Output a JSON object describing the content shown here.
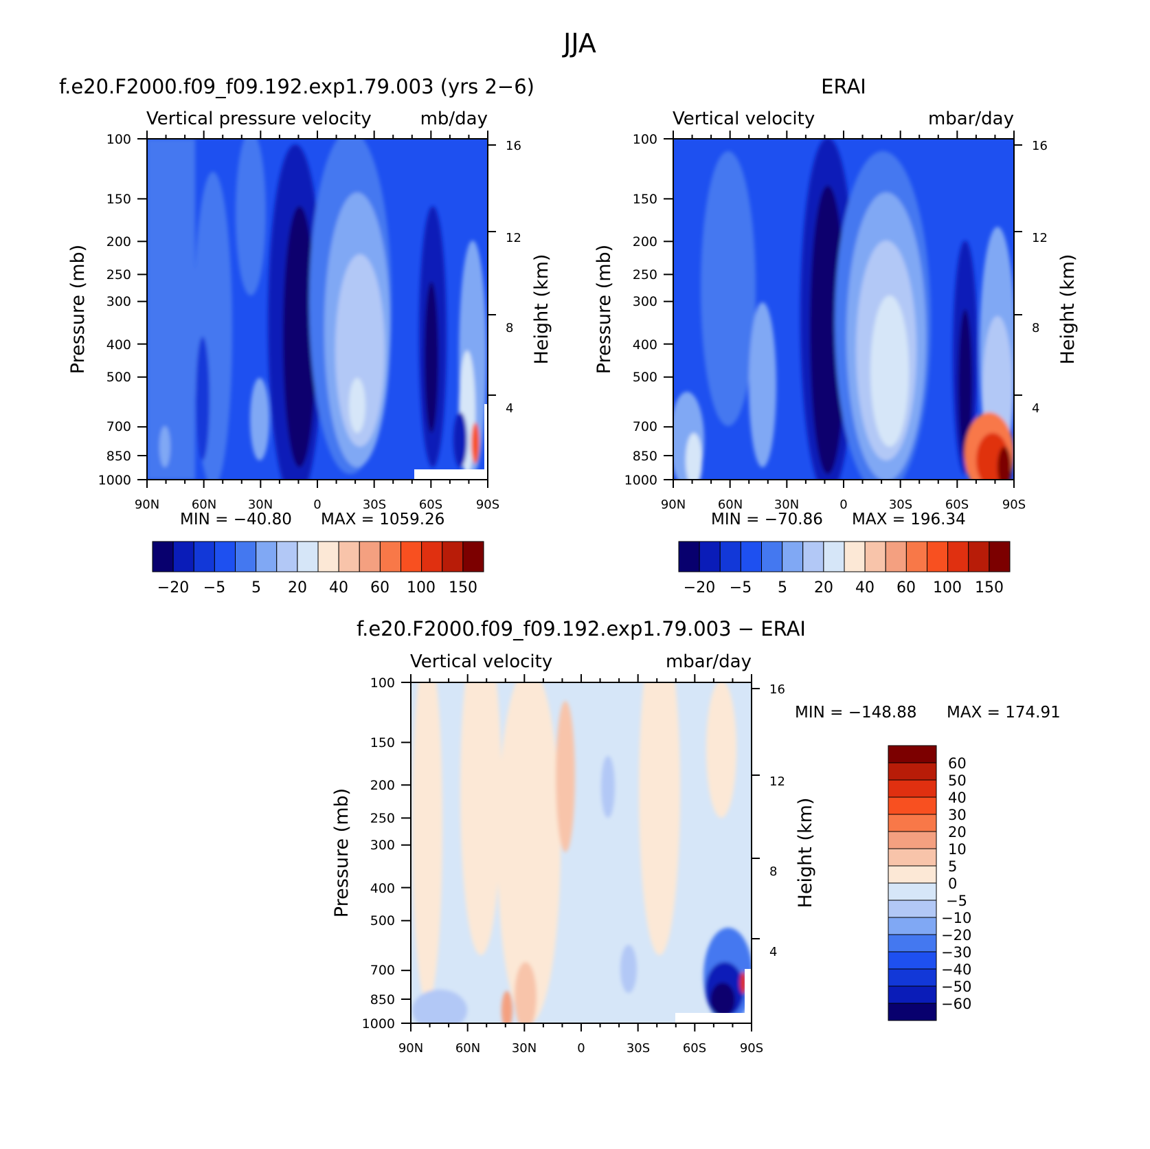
{
  "figure": {
    "title": "JJA"
  },
  "chart_data": [
    {
      "type": "heatmap",
      "panel_title": "f.e20.F2000.f09_f09.192.exp1.79.003 (yrs 2−6)",
      "field_label": "Vertical pressure velocity",
      "units": "mb/day",
      "ylabel": "Pressure (mb)",
      "ylabel_right": "Height (km)",
      "x_ticks": [
        "90N",
        "60N",
        "30N",
        "0",
        "30S",
        "60S",
        "90S"
      ],
      "x_range": [
        90,
        -90
      ],
      "y_ticks": [
        "100",
        "150",
        "200",
        "250",
        "300",
        "400",
        "500",
        "700",
        "850",
        "1000"
      ],
      "y_range": [
        100,
        1000
      ],
      "y_scale": "log",
      "height_ticks": [
        "16",
        "12",
        "8",
        "4"
      ],
      "min_label": "MIN = −40.80",
      "max_label": "MAX = 1059.26",
      "colorbar_labels": [
        "−20",
        "−5",
        "5",
        "20",
        "40",
        "60",
        "100",
        "150"
      ],
      "colorbar_orientation": "horizontal",
      "colors": [
        "#08006e",
        "#0a1cb8",
        "#1238d8",
        "#1e50f0",
        "#4478f0",
        "#80a8f4",
        "#b2c8f6",
        "#d6e6f8",
        "#fce8d6",
        "#f8c4aa",
        "#f4a080",
        "#f87848",
        "#f85020",
        "#e03010",
        "#b81c08",
        "#7c0000"
      ]
    },
    {
      "type": "heatmap",
      "panel_title": "ERAI",
      "field_label": "Vertical velocity",
      "units": "mbar/day",
      "ylabel": "Pressure (mb)",
      "ylabel_right": "Height (km)",
      "x_ticks": [
        "90N",
        "60N",
        "30N",
        "0",
        "30S",
        "60S",
        "90S"
      ],
      "x_range": [
        90,
        -90
      ],
      "y_ticks": [
        "100",
        "150",
        "200",
        "250",
        "300",
        "400",
        "500",
        "700",
        "850",
        "1000"
      ],
      "y_range": [
        100,
        1000
      ],
      "y_scale": "log",
      "height_ticks": [
        "16",
        "12",
        "8",
        "4"
      ],
      "min_label": "MIN = −70.86",
      "max_label": "MAX = 196.34",
      "colorbar_labels": [
        "−20",
        "−5",
        "5",
        "20",
        "40",
        "60",
        "100",
        "150"
      ],
      "colorbar_orientation": "horizontal",
      "colors": [
        "#08006e",
        "#0a1cb8",
        "#1238d8",
        "#1e50f0",
        "#4478f0",
        "#80a8f4",
        "#b2c8f6",
        "#d6e6f8",
        "#fce8d6",
        "#f8c4aa",
        "#f4a080",
        "#f87848",
        "#f85020",
        "#e03010",
        "#b81c08",
        "#7c0000"
      ]
    },
    {
      "type": "heatmap",
      "panel_title": "f.e20.F2000.f09_f09.192.exp1.79.003 − ERAI",
      "field_label": "Vertical velocity",
      "units": "mbar/day",
      "ylabel": "Pressure (mb)",
      "ylabel_right": "Height (km)",
      "x_ticks": [
        "90N",
        "60N",
        "30N",
        "0",
        "30S",
        "60S",
        "90S"
      ],
      "x_range": [
        90,
        -90
      ],
      "y_ticks": [
        "100",
        "150",
        "200",
        "250",
        "300",
        "400",
        "500",
        "700",
        "850",
        "1000"
      ],
      "y_range": [
        100,
        1000
      ],
      "y_scale": "log",
      "height_ticks": [
        "16",
        "12",
        "8",
        "4"
      ],
      "min_label": "MIN = −148.88",
      "max_label": "MAX = 174.91",
      "colorbar_labels": [
        "60",
        "50",
        "40",
        "30",
        "20",
        "10",
        "5",
        "0",
        "−5",
        "−10",
        "−20",
        "−30",
        "−40",
        "−50",
        "−60"
      ],
      "colorbar_orientation": "vertical",
      "colors": [
        "#7c0000",
        "#b81c08",
        "#e03010",
        "#f85020",
        "#f87848",
        "#f4a080",
        "#f8c4aa",
        "#fce8d6",
        "#d6e6f8",
        "#b2c8f6",
        "#80a8f4",
        "#4478f0",
        "#1e50f0",
        "#1238d8",
        "#0a1cb8",
        "#08006e"
      ]
    }
  ]
}
